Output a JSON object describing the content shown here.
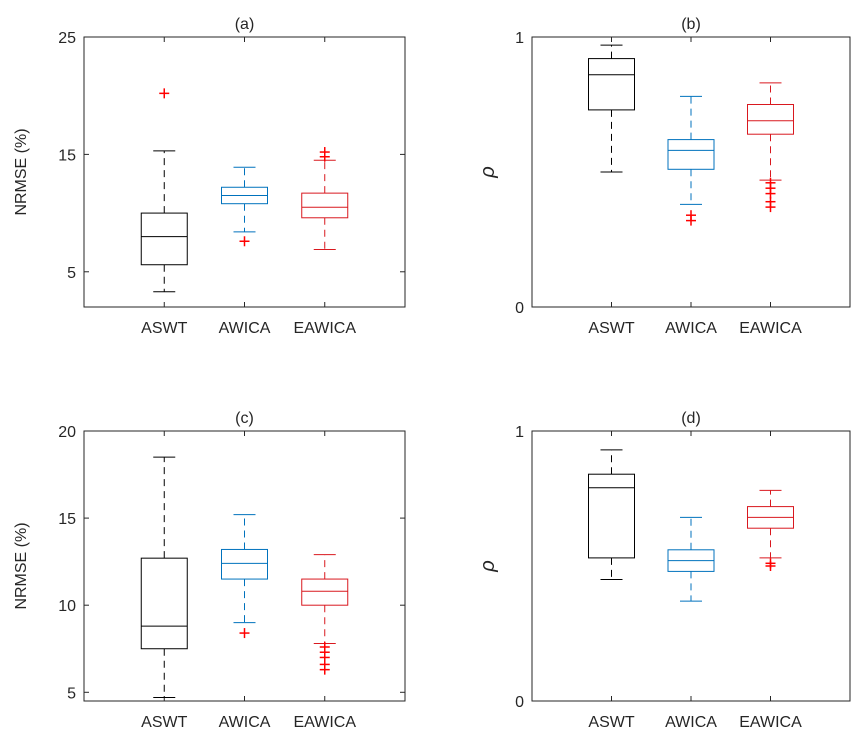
{
  "colors": {
    "ASWT": "#000000",
    "AWICA": "#0072BD",
    "EAWICA": "#D9181F",
    "axis": "#262626",
    "outlier": "#FF0000"
  },
  "chart_data": [
    {
      "type": "box",
      "title": "(a)",
      "ylabel": "NRMSE (%)",
      "ylim": [
        2,
        25
      ],
      "yticks": [
        5,
        15,
        25
      ],
      "categories": [
        "ASWT",
        "AWICA",
        "EAWICA"
      ],
      "boxes": [
        {
          "name": "ASWT",
          "whisker_low": 3.3,
          "q1": 5.6,
          "median": 8.0,
          "q3": 10.0,
          "whisker_high": 15.3,
          "outliers": [
            20.2
          ]
        },
        {
          "name": "AWICA",
          "whisker_low": 8.4,
          "q1": 10.8,
          "median": 11.5,
          "q3": 12.2,
          "whisker_high": 13.9,
          "outliers": [
            7.6
          ]
        },
        {
          "name": "EAWICA",
          "whisker_low": 6.9,
          "q1": 9.6,
          "median": 10.5,
          "q3": 11.7,
          "whisker_high": 14.5,
          "outliers": [
            14.8,
            15.2
          ]
        }
      ]
    },
    {
      "type": "box",
      "title": "(b)",
      "ylabel": "ρ",
      "ylim": [
        0,
        1
      ],
      "yticks": [
        0,
        1
      ],
      "categories": [
        "ASWT",
        "AWICA",
        "EAWICA"
      ],
      "boxes": [
        {
          "name": "ASWT",
          "whisker_low": 0.5,
          "q1": 0.73,
          "median": 0.86,
          "q3": 0.92,
          "whisker_high": 0.97,
          "outliers": []
        },
        {
          "name": "AWICA",
          "whisker_low": 0.38,
          "q1": 0.51,
          "median": 0.58,
          "q3": 0.62,
          "whisker_high": 0.78,
          "outliers": [
            0.32,
            0.34
          ]
        },
        {
          "name": "EAWICA",
          "whisker_low": 0.47,
          "q1": 0.64,
          "median": 0.69,
          "q3": 0.75,
          "whisker_high": 0.83,
          "outliers": [
            0.37,
            0.39,
            0.42,
            0.44,
            0.46
          ]
        }
      ]
    },
    {
      "type": "box",
      "title": "(c)",
      "ylabel": "NRMSE (%)",
      "ylim": [
        4.5,
        20
      ],
      "yticks": [
        5,
        10,
        15,
        20
      ],
      "categories": [
        "ASWT",
        "AWICA",
        "EAWICA"
      ],
      "boxes": [
        {
          "name": "ASWT",
          "whisker_low": 4.7,
          "q1": 7.5,
          "median": 8.8,
          "q3": 12.7,
          "whisker_high": 18.5,
          "outliers": []
        },
        {
          "name": "AWICA",
          "whisker_low": 9.0,
          "q1": 11.5,
          "median": 12.4,
          "q3": 13.2,
          "whisker_high": 15.2,
          "outliers": [
            8.4
          ]
        },
        {
          "name": "EAWICA",
          "whisker_low": 7.8,
          "q1": 10.0,
          "median": 10.8,
          "q3": 11.5,
          "whisker_high": 12.9,
          "outliers": [
            6.3,
            6.6,
            7.0,
            7.3,
            7.6
          ]
        }
      ]
    },
    {
      "type": "box",
      "title": "(d)",
      "ylabel": "ρ",
      "ylim": [
        0,
        1
      ],
      "yticks": [
        0,
        1
      ],
      "categories": [
        "ASWT",
        "AWICA",
        "EAWICA"
      ],
      "boxes": [
        {
          "name": "ASWT",
          "whisker_low": 0.45,
          "q1": 0.53,
          "median": 0.79,
          "q3": 0.84,
          "whisker_high": 0.93,
          "outliers": []
        },
        {
          "name": "AWICA",
          "whisker_low": 0.37,
          "q1": 0.48,
          "median": 0.52,
          "q3": 0.56,
          "whisker_high": 0.68,
          "outliers": []
        },
        {
          "name": "EAWICA",
          "whisker_low": 0.53,
          "q1": 0.64,
          "median": 0.68,
          "q3": 0.72,
          "whisker_high": 0.78,
          "outliers": [
            0.5,
            0.51
          ]
        }
      ]
    }
  ]
}
